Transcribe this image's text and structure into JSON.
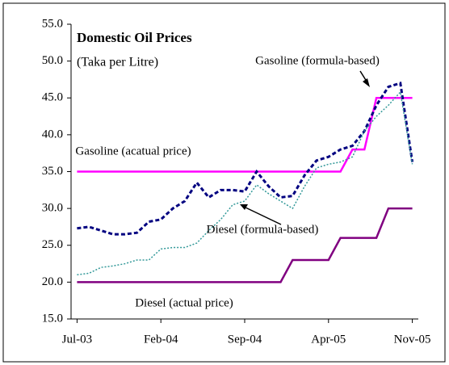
{
  "chart_data": {
    "type": "line",
    "title": "Domestic Oil Prices",
    "subtitle": "(Taka per Litre)",
    "categories": [
      "Jul-03",
      null,
      null,
      null,
      null,
      null,
      null,
      "Feb-04",
      null,
      null,
      null,
      null,
      null,
      null,
      "Sep-04",
      null,
      null,
      null,
      null,
      null,
      null,
      "Apr-05",
      null,
      null,
      null,
      null,
      null,
      null,
      "Nov-05"
    ],
    "series": [
      {
        "color": "#ff00ff",
        "dash": "solid",
        "values": [
          35,
          35,
          35,
          35,
          35,
          35,
          35,
          35,
          35,
          35,
          35,
          35,
          35,
          35,
          35,
          35,
          35,
          35,
          35,
          35,
          35,
          35,
          35,
          38,
          38,
          45,
          45,
          45,
          45
        ]
      },
      {
        "color": "#800080",
        "dash": "solid",
        "values": [
          20,
          20,
          20,
          20,
          20,
          20,
          20,
          20,
          20,
          20,
          20,
          20,
          20,
          20,
          20,
          20,
          20,
          20,
          23,
          23,
          23,
          23,
          26,
          26,
          26,
          26,
          30,
          30,
          30
        ]
      },
      {
        "color": "#000080",
        "dash": "dashed",
        "values": [
          27.3,
          27.5,
          27,
          26.5,
          26.5,
          26.7,
          28.2,
          28.5,
          30,
          31,
          33.5,
          31.5,
          32.5,
          32.5,
          32.3,
          35,
          33,
          31.5,
          31.7,
          34.5,
          36.5,
          37,
          38,
          38.5,
          40.5,
          44,
          46.5,
          47,
          36.3
        ]
      },
      {
        "color": "#339999",
        "dash": "dotted",
        "values": [
          21,
          21.2,
          22,
          22.2,
          22.5,
          23,
          23,
          24.5,
          24.7,
          24.7,
          25.3,
          27,
          28.5,
          30.5,
          31,
          33.2,
          32,
          31,
          30,
          33,
          35.5,
          36,
          36.3,
          37,
          40.5,
          42.5,
          44,
          45.8,
          36
        ]
      }
    ],
    "annotations": [
      {
        "text": "Gasoline (formula-based)"
      },
      {
        "text": "Gasoline (acatual price)"
      },
      {
        "text": "Diesel (formula-based)"
      },
      {
        "text": "Diesel (actual price)"
      }
    ],
    "ylim": [
      15,
      55
    ],
    "yticks": [
      {
        "value": 15,
        "label": "15.0"
      },
      {
        "value": 20,
        "label": "20.0"
      },
      {
        "value": 25,
        "label": "25.0"
      },
      {
        "value": 30,
        "label": "30.0"
      },
      {
        "value": 35,
        "label": "35.0"
      },
      {
        "value": 40,
        "label": "40.0"
      },
      {
        "value": 45,
        "label": "45.0"
      },
      {
        "value": 50,
        "label": "50.0"
      },
      {
        "value": 55,
        "label": "55.0"
      }
    ]
  }
}
